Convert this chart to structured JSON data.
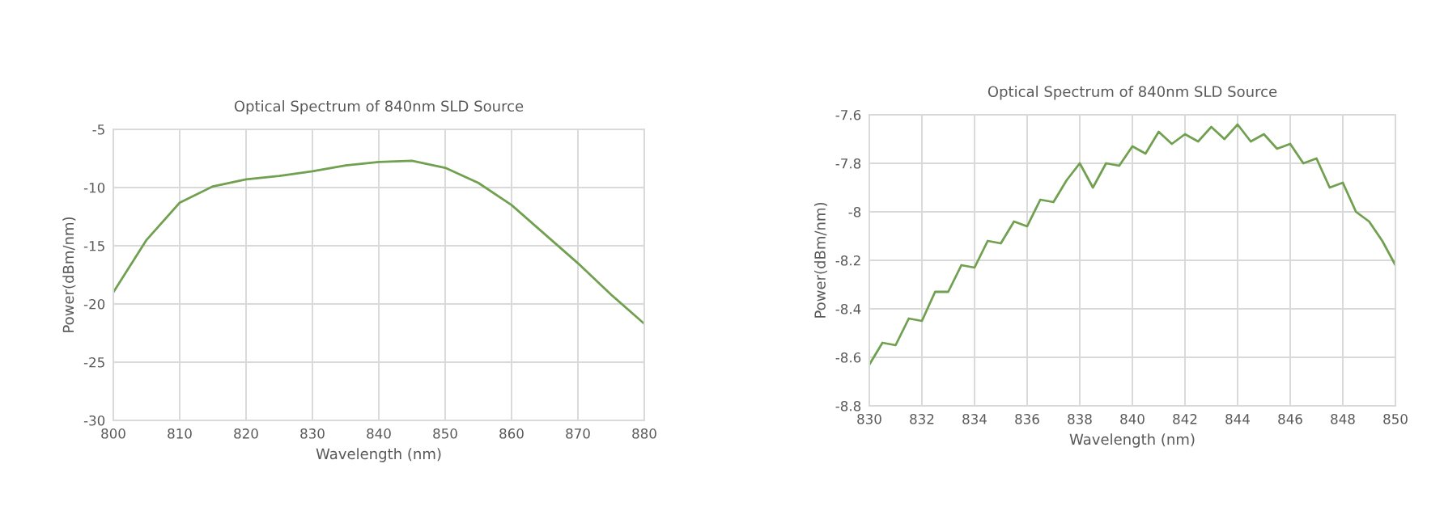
{
  "chart_data": [
    {
      "type": "line",
      "title": "Optical Spectrum of 840nm SLD Source",
      "xlabel": "Wavelength (nm)",
      "ylabel": "Power(dBm/nm)",
      "xlim": [
        800,
        880
      ],
      "xticks": [
        800,
        810,
        820,
        830,
        840,
        850,
        860,
        870,
        880
      ],
      "ylim": [
        -30,
        -5
      ],
      "yticks": [
        -30,
        -25,
        -20,
        -15,
        -10,
        -5
      ],
      "grid": true,
      "series": [
        {
          "color": "#70a050",
          "x": [
            800,
            805,
            810,
            815,
            820,
            825,
            830,
            835,
            840,
            845,
            850,
            855,
            860,
            865,
            870,
            875,
            880
          ],
          "values": [
            -19,
            -14.5,
            -11.3,
            -9.9,
            -9.3,
            -9.0,
            -8.6,
            -8.1,
            -7.8,
            -7.7,
            -8.3,
            -9.6,
            -11.5,
            -14,
            -16.5,
            -19.2,
            -21.7
          ]
        }
      ]
    },
    {
      "type": "line",
      "title": "Optical Spectrum of 840nm SLD Source",
      "xlabel": "Wavelength (nm)",
      "ylabel": "Power(dBm/nm)",
      "xlim": [
        830,
        850
      ],
      "xticks": [
        830,
        832,
        834,
        836,
        838,
        840,
        842,
        844,
        846,
        848,
        850
      ],
      "ylim": [
        -8.8,
        -7.6
      ],
      "yticks": [
        -8.8,
        -8.6,
        -8.4,
        -8.2,
        -8,
        -7.8,
        -7.6
      ],
      "grid": true,
      "series": [
        {
          "color": "#70a050",
          "x": [
            830,
            830.5,
            831,
            831.5,
            832,
            832.5,
            833,
            833.5,
            834,
            834.5,
            835,
            835.5,
            836,
            836.5,
            837,
            837.5,
            838,
            838.5,
            839,
            839.5,
            840,
            840.5,
            841,
            841.5,
            842,
            842.5,
            843,
            843.5,
            844,
            844.5,
            845,
            845.5,
            846,
            846.5,
            847,
            847.5,
            848,
            848.5,
            849,
            849.5,
            850
          ],
          "values": [
            -8.63,
            -8.54,
            -8.55,
            -8.44,
            -8.45,
            -8.33,
            -8.33,
            -8.22,
            -8.23,
            -8.12,
            -8.13,
            -8.04,
            -8.06,
            -7.95,
            -7.96,
            -7.87,
            -7.8,
            -7.9,
            -7.8,
            -7.81,
            -7.73,
            -7.76,
            -7.67,
            -7.72,
            -7.68,
            -7.71,
            -7.65,
            -7.7,
            -7.64,
            -7.71,
            -7.68,
            -7.74,
            -7.72,
            -7.8,
            -7.78,
            -7.9,
            -7.88,
            -8.0,
            -8.04,
            -8.12,
            -8.22
          ]
        }
      ]
    }
  ]
}
